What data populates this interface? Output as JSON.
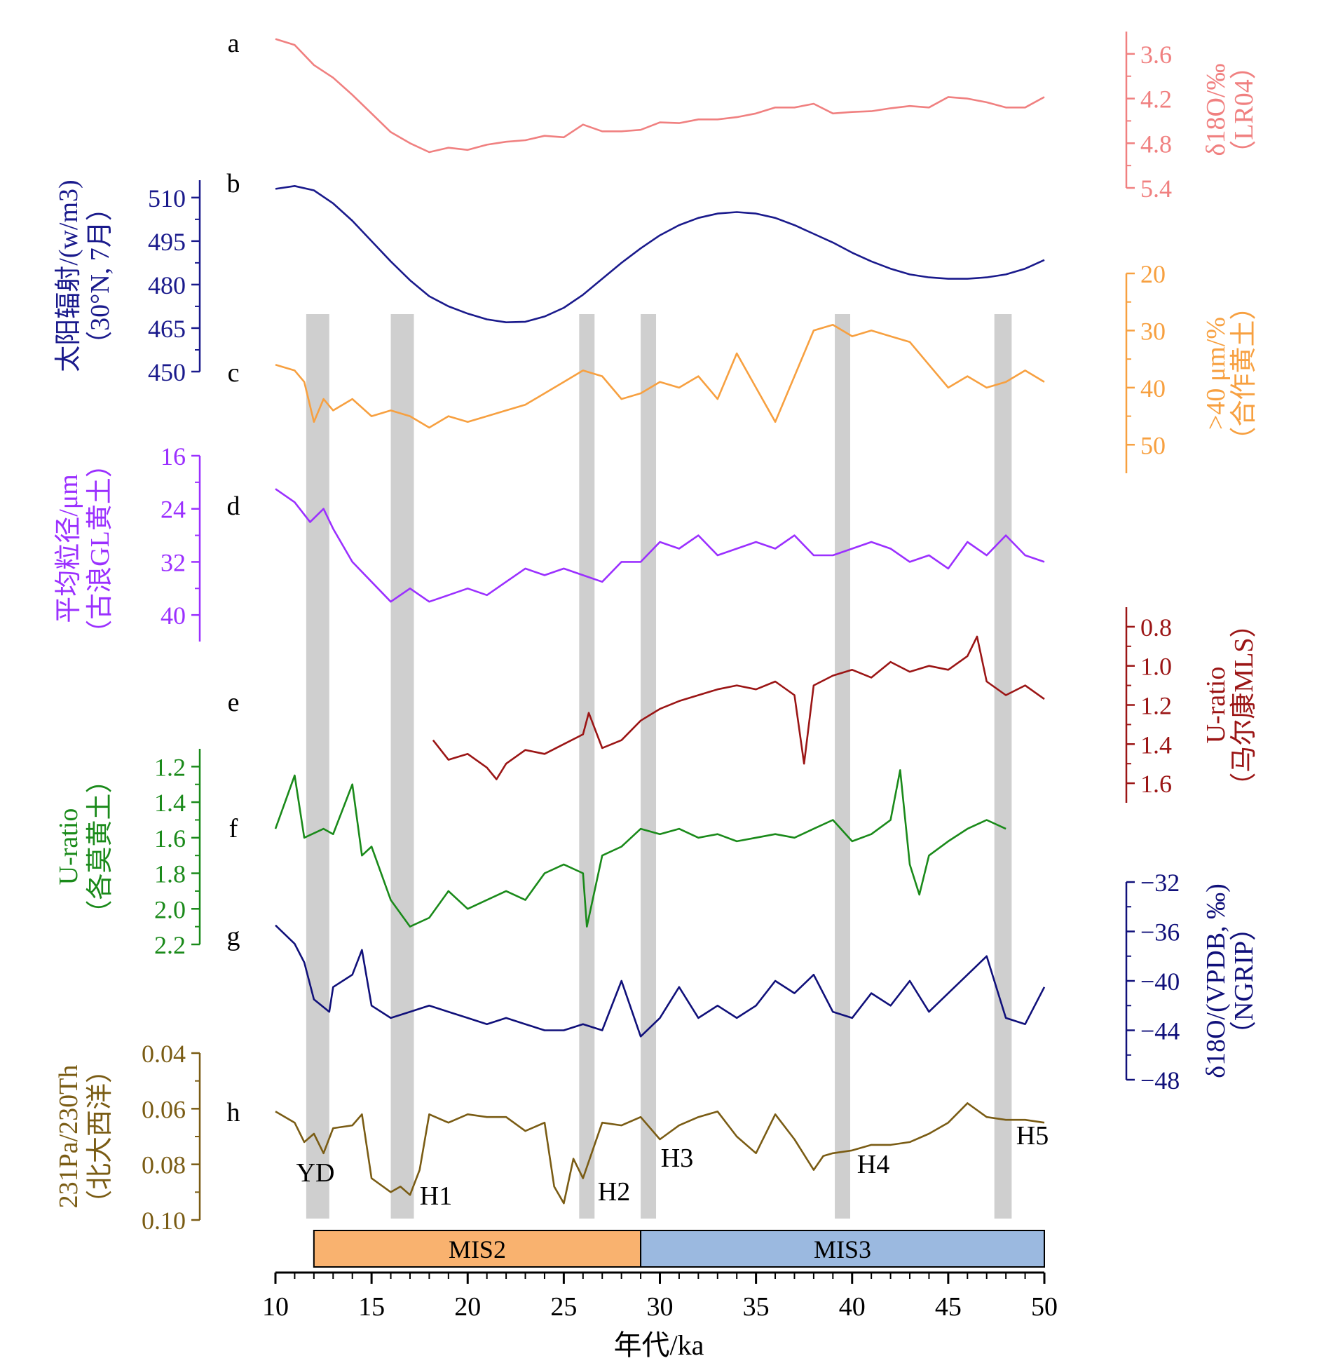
{
  "chart_data": {
    "type": "line",
    "x_axis": {
      "label": "年代/ka",
      "range": [
        10,
        50
      ],
      "ticks": [
        10,
        15,
        20,
        25,
        30,
        35,
        40,
        45,
        50
      ]
    },
    "mis_bands": [
      {
        "label": "MIS2",
        "from": 12,
        "to": 29,
        "color": "#f9b26f"
      },
      {
        "label": "MIS3",
        "from": 29,
        "to": 50,
        "color": "#9bb9e0"
      }
    ],
    "shaded_intervals": [
      {
        "from": 11.6,
        "to": 12.8,
        "label": "YD"
      },
      {
        "from": 16.0,
        "to": 17.2,
        "label": "H1"
      },
      {
        "from": 25.8,
        "to": 26.6,
        "label": "H2"
      },
      {
        "from": 29.0,
        "to": 29.8,
        "label": "H3"
      },
      {
        "from": 39.1,
        "to": 39.9,
        "label": "H4"
      },
      {
        "from": 47.4,
        "to": 48.3,
        "label": "H5"
      }
    ],
    "panels": [
      {
        "letter": "a",
        "side": "right",
        "color": "#f08080",
        "label_line1": "δ18O/‰",
        "label_line2": "（LR04）",
        "range": [
          3.3,
          5.4
        ],
        "inverted": true,
        "ticks": [
          "3.6",
          "4.2",
          "4.8",
          "5.4"
        ],
        "tick_values": [
          3.6,
          4.2,
          4.8,
          5.4
        ],
        "x": [
          10,
          11,
          12,
          13,
          14,
          15,
          16,
          17,
          18,
          19,
          20,
          21,
          22,
          23,
          24,
          25,
          26,
          27,
          28,
          29,
          30,
          31,
          32,
          33,
          34,
          35,
          36,
          37,
          38,
          39,
          40,
          41,
          42,
          43,
          44,
          45,
          46,
          47,
          48,
          49,
          50
        ],
        "y": [
          3.4,
          3.48,
          3.75,
          3.92,
          4.15,
          4.4,
          4.65,
          4.8,
          4.92,
          4.86,
          4.89,
          4.82,
          4.78,
          4.76,
          4.7,
          4.72,
          4.55,
          4.64,
          4.64,
          4.62,
          4.52,
          4.53,
          4.48,
          4.48,
          4.45,
          4.4,
          4.32,
          4.32,
          4.27,
          4.4,
          4.38,
          4.37,
          4.33,
          4.3,
          4.32,
          4.18,
          4.2,
          4.25,
          4.32,
          4.32,
          4.18
        ]
      },
      {
        "letter": "b",
        "side": "left",
        "color": "#1a1a8c",
        "label_line1": "太阳辐射/(w/m3)",
        "label_line2": "（30°N, 7月）",
        "range": [
          450,
          516
        ],
        "inverted": false,
        "ticks": [
          "510",
          "495",
          "480",
          "465",
          "450"
        ],
        "tick_values": [
          510,
          495,
          480,
          465,
          450
        ],
        "x": [
          10,
          11,
          12,
          13,
          14,
          15,
          16,
          17,
          18,
          19,
          20,
          21,
          22,
          23,
          24,
          25,
          26,
          27,
          28,
          29,
          30,
          31,
          32,
          33,
          34,
          35,
          36,
          37,
          38,
          39,
          40,
          41,
          42,
          43,
          44,
          45,
          46,
          47,
          48,
          49,
          50
        ],
        "y": [
          513.0,
          514.0,
          512.5,
          508.0,
          502.0,
          495.0,
          488.0,
          481.5,
          476.0,
          472.5,
          470.0,
          468.0,
          467.0,
          467.2,
          469.0,
          472.0,
          476.5,
          482.0,
          487.5,
          492.5,
          497.0,
          500.5,
          503.0,
          504.5,
          505.0,
          504.5,
          503.0,
          500.5,
          497.5,
          494.5,
          491.0,
          488.0,
          485.5,
          483.5,
          482.5,
          482.0,
          482.0,
          482.5,
          483.5,
          485.5,
          488.5
        ]
      },
      {
        "letter": "c",
        "side": "right",
        "color": "#f7a040",
        "label_line1": ">40 μm/%",
        "label_line2": "（合作黄土）",
        "range": [
          20,
          55
        ],
        "inverted": true,
        "ticks": [
          "20",
          "30",
          "40",
          "50"
        ],
        "tick_values": [
          20,
          30,
          40,
          50
        ],
        "x": [
          10,
          11,
          11.5,
          12,
          12.5,
          13,
          14,
          15,
          16,
          17,
          18,
          19,
          20,
          21,
          22,
          23,
          24,
          25,
          26,
          27,
          28,
          29,
          30,
          31,
          32,
          33,
          34,
          35,
          36,
          37,
          38,
          39,
          40,
          41,
          42,
          43,
          44,
          45,
          46,
          47,
          48,
          49,
          50
        ],
        "y": [
          36,
          37,
          39,
          46,
          42,
          44,
          42,
          45,
          44,
          45,
          47,
          45,
          46,
          45,
          44,
          43,
          41,
          39,
          37,
          38,
          42,
          41,
          39,
          40,
          38,
          42,
          34,
          40,
          46,
          38,
          30,
          29,
          31,
          30,
          31,
          32,
          36,
          40,
          38,
          40,
          39,
          37,
          39
        ]
      },
      {
        "letter": "d",
        "side": "left",
        "color": "#9b30ff",
        "label_line1": "平均粒径/μm",
        "label_line2": "（古浪GL黄土）",
        "range": [
          16,
          44
        ],
        "inverted": true,
        "ticks": [
          "16",
          "24",
          "32",
          "40"
        ],
        "tick_values": [
          16,
          24,
          32,
          40
        ],
        "x": [
          10,
          11,
          11.8,
          12.5,
          13,
          14,
          15,
          16,
          17,
          18,
          19,
          20,
          21,
          22,
          23,
          24,
          25,
          26,
          27,
          28,
          29,
          30,
          31,
          32,
          33,
          34,
          35,
          36,
          37,
          38,
          39,
          40,
          41,
          42,
          43,
          44,
          45,
          46,
          47,
          48,
          49,
          50
        ],
        "y": [
          21,
          23,
          26,
          24,
          27,
          32,
          35,
          38,
          36,
          38,
          37,
          36,
          37,
          35,
          33,
          34,
          33,
          34,
          35,
          32,
          32,
          29,
          30,
          28,
          31,
          30,
          29,
          30,
          28,
          31,
          31,
          30,
          29,
          30,
          32,
          31,
          33,
          29,
          31,
          28,
          31,
          32
        ]
      },
      {
        "letter": "e",
        "side": "right",
        "color": "#9b1515",
        "label_line1": "U-ratio",
        "label_line2": "（马尔康MLS）",
        "range": [
          0.7,
          1.7
        ],
        "inverted": true,
        "ticks": [
          "0.8",
          "1.0",
          "1.2",
          "1.4",
          "1.6"
        ],
        "tick_values": [
          0.8,
          1.0,
          1.2,
          1.4,
          1.6
        ],
        "x": [
          18.2,
          19,
          20,
          21,
          21.5,
          22,
          23,
          24,
          25,
          26,
          26.3,
          27,
          28,
          29,
          30,
          31,
          32,
          33,
          34,
          35,
          36,
          37,
          37.5,
          38,
          39,
          40,
          41,
          42,
          43,
          44,
          45,
          46,
          46.5,
          47,
          48,
          49,
          50
        ],
        "y": [
          1.38,
          1.48,
          1.45,
          1.52,
          1.58,
          1.5,
          1.43,
          1.45,
          1.4,
          1.35,
          1.24,
          1.42,
          1.38,
          1.28,
          1.22,
          1.18,
          1.15,
          1.12,
          1.1,
          1.12,
          1.08,
          1.15,
          1.5,
          1.1,
          1.05,
          1.02,
          1.06,
          0.98,
          1.03,
          1.0,
          1.02,
          0.95,
          0.85,
          1.08,
          1.15,
          1.1,
          1.17
        ]
      },
      {
        "letter": "f",
        "side": "left",
        "color": "#1a8a1a",
        "label_line1": "U-ratio",
        "label_line2": "（各莫黄土）",
        "range": [
          1.1,
          2.2
        ],
        "inverted": true,
        "ticks": [
          "1.2",
          "1.4",
          "1.6",
          "1.8",
          "2.0",
          "2.2"
        ],
        "tick_values": [
          1.2,
          1.4,
          1.6,
          1.8,
          2.0,
          2.2
        ],
        "x": [
          10,
          11,
          11.5,
          12.5,
          13,
          14,
          14.5,
          15,
          16,
          17,
          18,
          19,
          20,
          21,
          22,
          23,
          24,
          25,
          26,
          26.2,
          27,
          28,
          29,
          30,
          31,
          32,
          33,
          34,
          35,
          36,
          37,
          38,
          39,
          40,
          41,
          42,
          42.5,
          43,
          43.5,
          44,
          45,
          46,
          47,
          48
        ],
        "y": [
          1.55,
          1.25,
          1.6,
          1.55,
          1.58,
          1.3,
          1.7,
          1.65,
          1.95,
          2.1,
          2.05,
          1.9,
          2.0,
          1.95,
          1.9,
          1.95,
          1.8,
          1.75,
          1.8,
          2.1,
          1.7,
          1.65,
          1.55,
          1.58,
          1.55,
          1.6,
          1.58,
          1.62,
          1.6,
          1.58,
          1.6,
          1.55,
          1.5,
          1.62,
          1.58,
          1.5,
          1.22,
          1.75,
          1.92,
          1.7,
          1.62,
          1.55,
          1.5,
          1.55
        ]
      },
      {
        "letter": "g",
        "side": "right",
        "color": "#10107a",
        "label_line1": "δ18O/(VPDB, ‰)",
        "label_line2": "（NGRIP）",
        "range": [
          -48,
          -32
        ],
        "inverted": false,
        "ticks": [
          "−32",
          "−36",
          "−40",
          "−44",
          "−48"
        ],
        "tick_values": [
          -32,
          -36,
          -40,
          -44,
          -48
        ],
        "x": [
          10,
          11,
          11.5,
          12,
          12.8,
          13,
          14,
          14.5,
          15,
          16,
          17,
          18,
          19,
          20,
          21,
          22,
          23,
          24,
          25,
          26,
          27,
          28,
          29,
          30,
          31,
          32,
          33,
          34,
          35,
          36,
          37,
          38,
          39,
          40,
          41,
          42,
          43,
          44,
          45,
          46,
          47,
          48,
          49,
          50
        ],
        "y": [
          -35.5,
          -37.0,
          -38.5,
          -41.5,
          -42.5,
          -40.5,
          -39.5,
          -37.5,
          -42.0,
          -43.0,
          -42.5,
          -42.0,
          -42.5,
          -43.0,
          -43.5,
          -43.0,
          -43.5,
          -44.0,
          -44.0,
          -43.5,
          -44.0,
          -40.0,
          -44.5,
          -43.0,
          -40.5,
          -43.0,
          -42.0,
          -43.0,
          -42.0,
          -40.0,
          -41.0,
          -39.5,
          -42.5,
          -43.0,
          -41.0,
          -42.0,
          -40.0,
          -42.5,
          -41.0,
          -39.5,
          -38.0,
          -43.0,
          -43.5,
          -40.5
        ]
      },
      {
        "letter": "h",
        "side": "left",
        "color": "#7a5c14",
        "label_line1": "231Pa/230Th",
        "label_line2": "（北大西洋）",
        "range": [
          0.04,
          0.1
        ],
        "inverted": true,
        "ticks": [
          "0.04",
          "0.06",
          "0.08",
          "0.10"
        ],
        "tick_values": [
          0.04,
          0.06,
          0.08,
          0.1
        ],
        "x": [
          10,
          11,
          11.5,
          12,
          12.5,
          13,
          14,
          14.5,
          15,
          16,
          16.5,
          17,
          17.5,
          18,
          19,
          20,
          21,
          22,
          23,
          24,
          24.5,
          25,
          25.5,
          26,
          26.5,
          27,
          28,
          29,
          30,
          31,
          32,
          33,
          34,
          35,
          36,
          37,
          38,
          38.5,
          39,
          40,
          41,
          42,
          43,
          44,
          45,
          46,
          47,
          48,
          49,
          50
        ],
        "y": [
          0.061,
          0.065,
          0.072,
          0.069,
          0.076,
          0.067,
          0.066,
          0.062,
          0.085,
          0.09,
          0.088,
          0.091,
          0.082,
          0.062,
          0.065,
          0.062,
          0.063,
          0.063,
          0.068,
          0.065,
          0.088,
          0.094,
          0.078,
          0.085,
          0.075,
          0.065,
          0.066,
          0.063,
          0.071,
          0.066,
          0.063,
          0.061,
          0.07,
          0.076,
          0.062,
          0.071,
          0.082,
          0.077,
          0.076,
          0.075,
          0.073,
          0.073,
          0.072,
          0.069,
          0.065,
          0.058,
          0.063,
          0.064,
          0.064,
          0.065
        ]
      }
    ]
  }
}
